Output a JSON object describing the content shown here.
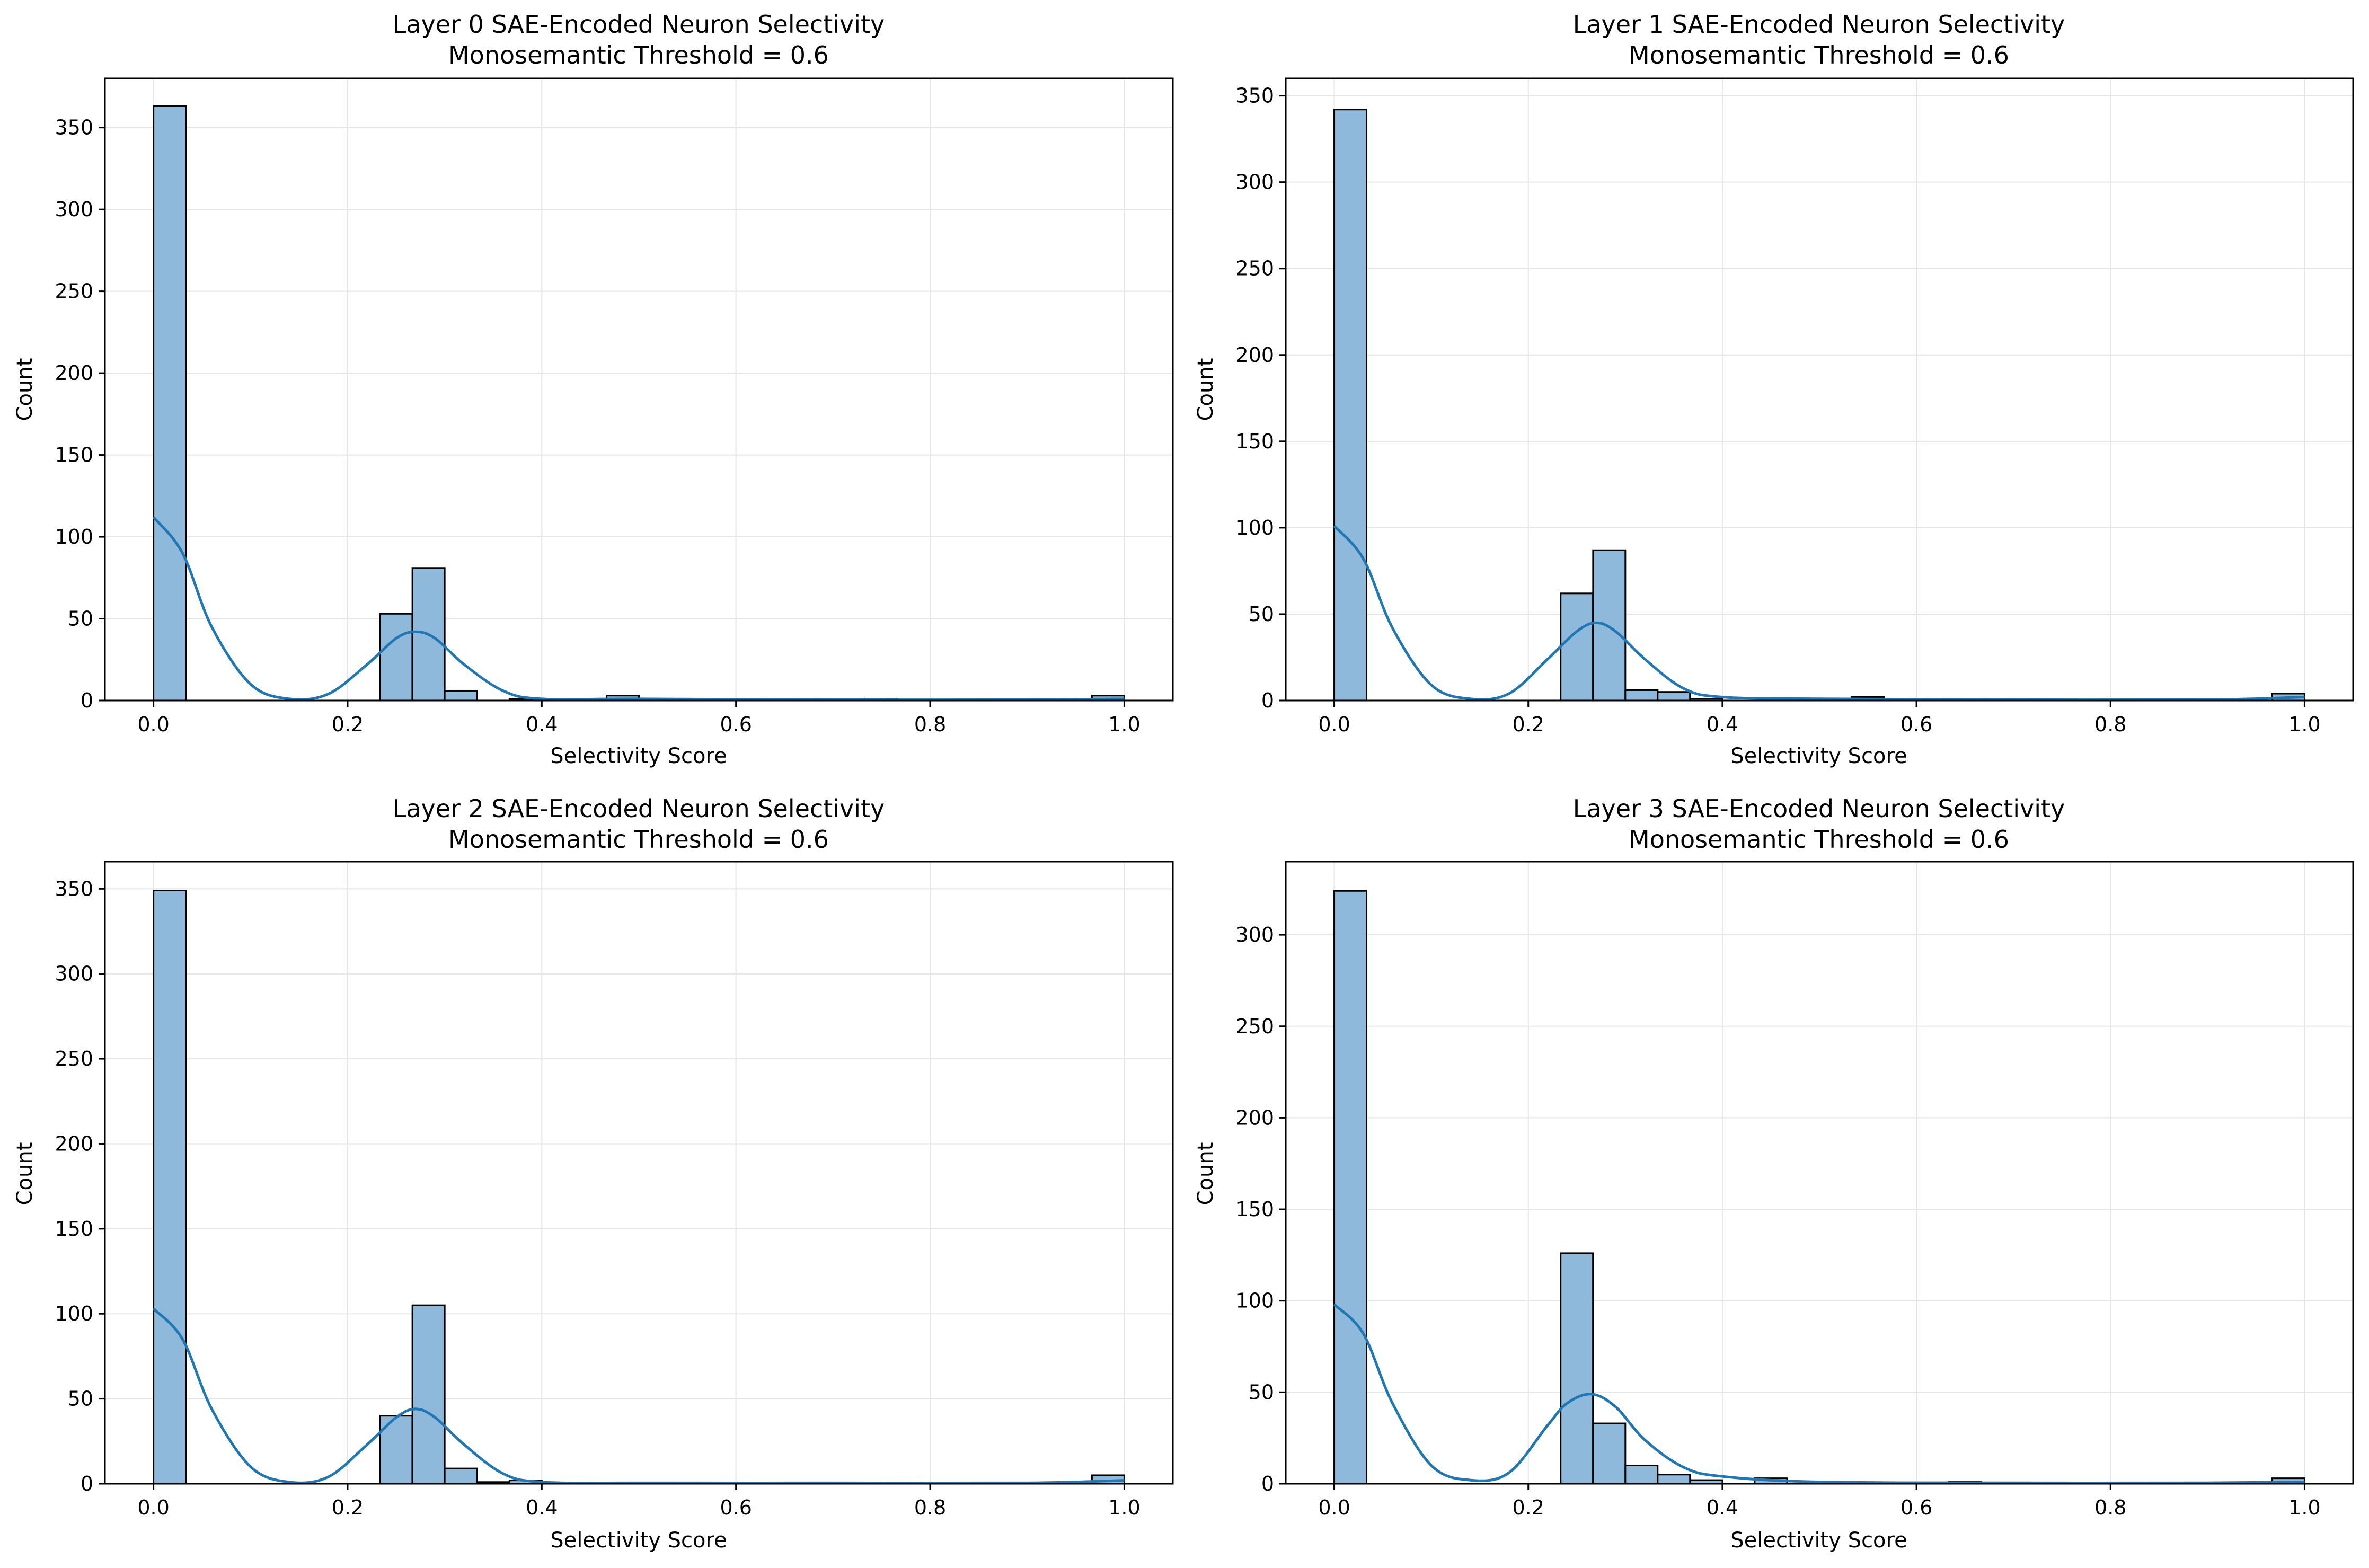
{
  "figure": {
    "colors": {
      "bar_fill": "#8fb9da",
      "bar_edge": "#000000",
      "kde_line": "#1f77b4",
      "grid": "#e5e5e5",
      "axes": "#000000"
    }
  },
  "chart_data": [
    {
      "type": "bar",
      "title": "Layer 0 SAE-Encoded Neuron Selectivity",
      "subtitle": "Monosemantic Threshold = 0.6",
      "xlabel": "Selectivity Score",
      "ylabel": "Count",
      "xlim": [
        -0.05,
        1.05
      ],
      "ylim": [
        0,
        380
      ],
      "xticks": [
        0.0,
        0.2,
        0.4,
        0.6,
        0.8,
        1.0
      ],
      "xtick_labels": [
        "0.0",
        "0.2",
        "0.4",
        "0.6",
        "0.8",
        "1.0"
      ],
      "yticks": [
        0,
        50,
        100,
        150,
        200,
        250,
        300,
        350
      ],
      "ytick_labels": [
        "0",
        "50",
        "100",
        "150",
        "200",
        "250",
        "300",
        "350"
      ],
      "grid": true,
      "bin_width": 0.0333,
      "bins": [
        {
          "x": 0.0,
          "count": 363
        },
        {
          "x": 0.2333,
          "count": 53
        },
        {
          "x": 0.2667,
          "count": 81
        },
        {
          "x": 0.3,
          "count": 6
        },
        {
          "x": 0.3667,
          "count": 1
        },
        {
          "x": 0.4667,
          "count": 3
        },
        {
          "x": 0.6,
          "count": 1
        },
        {
          "x": 0.7333,
          "count": 1
        },
        {
          "x": 0.9667,
          "count": 3
        }
      ],
      "kde": {
        "x": [
          0,
          0.03,
          0.06,
          0.1,
          0.14,
          0.18,
          0.22,
          0.25,
          0.27,
          0.29,
          0.32,
          0.36,
          0.4,
          0.5,
          0.7,
          0.9,
          1.0
        ],
        "y": [
          112,
          90,
          45,
          10,
          1,
          4,
          22,
          38,
          42,
          38,
          22,
          6,
          1,
          1,
          0.5,
          0.5,
          1
        ]
      }
    },
    {
      "type": "bar",
      "title": "Layer 1 SAE-Encoded Neuron Selectivity",
      "subtitle": "Monosemantic Threshold = 0.6",
      "xlabel": "Selectivity Score",
      "ylabel": "Count",
      "xlim": [
        -0.05,
        1.05
      ],
      "ylim": [
        0,
        360
      ],
      "xticks": [
        0.0,
        0.2,
        0.4,
        0.6,
        0.8,
        1.0
      ],
      "xtick_labels": [
        "0.0",
        "0.2",
        "0.4",
        "0.6",
        "0.8",
        "1.0"
      ],
      "yticks": [
        0,
        50,
        100,
        150,
        200,
        250,
        300,
        350
      ],
      "ytick_labels": [
        "0",
        "50",
        "100",
        "150",
        "200",
        "250",
        "300",
        "350"
      ],
      "grid": true,
      "bin_width": 0.0333,
      "bins": [
        {
          "x": 0.0,
          "count": 342
        },
        {
          "x": 0.2333,
          "count": 62
        },
        {
          "x": 0.2667,
          "count": 87
        },
        {
          "x": 0.3,
          "count": 6
        },
        {
          "x": 0.3333,
          "count": 5
        },
        {
          "x": 0.3667,
          "count": 1
        },
        {
          "x": 0.5333,
          "count": 2
        },
        {
          "x": 0.9667,
          "count": 4
        }
      ],
      "kde": {
        "x": [
          0,
          0.03,
          0.06,
          0.1,
          0.14,
          0.18,
          0.22,
          0.25,
          0.27,
          0.29,
          0.32,
          0.36,
          0.4,
          0.5,
          0.7,
          0.9,
          1.0
        ],
        "y": [
          101,
          82,
          42,
          9,
          1,
          4,
          24,
          40,
          45,
          40,
          24,
          7,
          2,
          1,
          0.5,
          0.5,
          2
        ]
      }
    },
    {
      "type": "bar",
      "title": "Layer 2 SAE-Encoded Neuron Selectivity",
      "subtitle": "Monosemantic Threshold = 0.6",
      "xlabel": "Selectivity Score",
      "ylabel": "Count",
      "xlim": [
        -0.05,
        1.05
      ],
      "ylim": [
        0,
        366
      ],
      "xticks": [
        0.0,
        0.2,
        0.4,
        0.6,
        0.8,
        1.0
      ],
      "xtick_labels": [
        "0.0",
        "0.2",
        "0.4",
        "0.6",
        "0.8",
        "1.0"
      ],
      "yticks": [
        0,
        50,
        100,
        150,
        200,
        250,
        300,
        350
      ],
      "ytick_labels": [
        "0",
        "50",
        "100",
        "150",
        "200",
        "250",
        "300",
        "350"
      ],
      "grid": true,
      "bin_width": 0.0333,
      "bins": [
        {
          "x": 0.0,
          "count": 349
        },
        {
          "x": 0.2333,
          "count": 40
        },
        {
          "x": 0.2667,
          "count": 105
        },
        {
          "x": 0.3,
          "count": 9
        },
        {
          "x": 0.3333,
          "count": 1
        },
        {
          "x": 0.3667,
          "count": 2
        },
        {
          "x": 0.9667,
          "count": 5
        }
      ],
      "kde": {
        "x": [
          0,
          0.03,
          0.06,
          0.1,
          0.14,
          0.18,
          0.22,
          0.25,
          0.27,
          0.29,
          0.32,
          0.36,
          0.4,
          0.5,
          0.7,
          0.9,
          1.0
        ],
        "y": [
          103,
          85,
          44,
          10,
          1,
          4,
          23,
          39,
          44,
          39,
          23,
          6,
          1,
          0.5,
          0.5,
          0.5,
          2
        ]
      }
    },
    {
      "type": "bar",
      "title": "Layer 3 SAE-Encoded Neuron Selectivity",
      "subtitle": "Monosemantic Threshold = 0.6",
      "xlabel": "Selectivity Score",
      "ylabel": "Count",
      "xlim": [
        -0.05,
        1.05
      ],
      "ylim": [
        0,
        340
      ],
      "xticks": [
        0.0,
        0.2,
        0.4,
        0.6,
        0.8,
        1.0
      ],
      "xtick_labels": [
        "0.0",
        "0.2",
        "0.4",
        "0.6",
        "0.8",
        "1.0"
      ],
      "yticks": [
        0,
        50,
        100,
        150,
        200,
        250,
        300
      ],
      "ytick_labels": [
        "0",
        "50",
        "100",
        "150",
        "200",
        "250",
        "300"
      ],
      "grid": true,
      "bin_width": 0.0333,
      "bins": [
        {
          "x": 0.0,
          "count": 324
        },
        {
          "x": 0.2333,
          "count": 126
        },
        {
          "x": 0.2667,
          "count": 33
        },
        {
          "x": 0.3,
          "count": 10
        },
        {
          "x": 0.3333,
          "count": 5
        },
        {
          "x": 0.3667,
          "count": 2
        },
        {
          "x": 0.4333,
          "count": 3
        },
        {
          "x": 0.6333,
          "count": 1
        },
        {
          "x": 0.9667,
          "count": 3
        }
      ],
      "kde": {
        "x": [
          0,
          0.03,
          0.06,
          0.1,
          0.14,
          0.18,
          0.22,
          0.24,
          0.265,
          0.29,
          0.32,
          0.36,
          0.4,
          0.5,
          0.7,
          0.9,
          1.0
        ],
        "y": [
          98,
          82,
          44,
          10,
          2,
          6,
          32,
          44,
          49,
          42,
          24,
          9,
          4,
          1,
          0.5,
          0.5,
          1
        ]
      }
    }
  ]
}
